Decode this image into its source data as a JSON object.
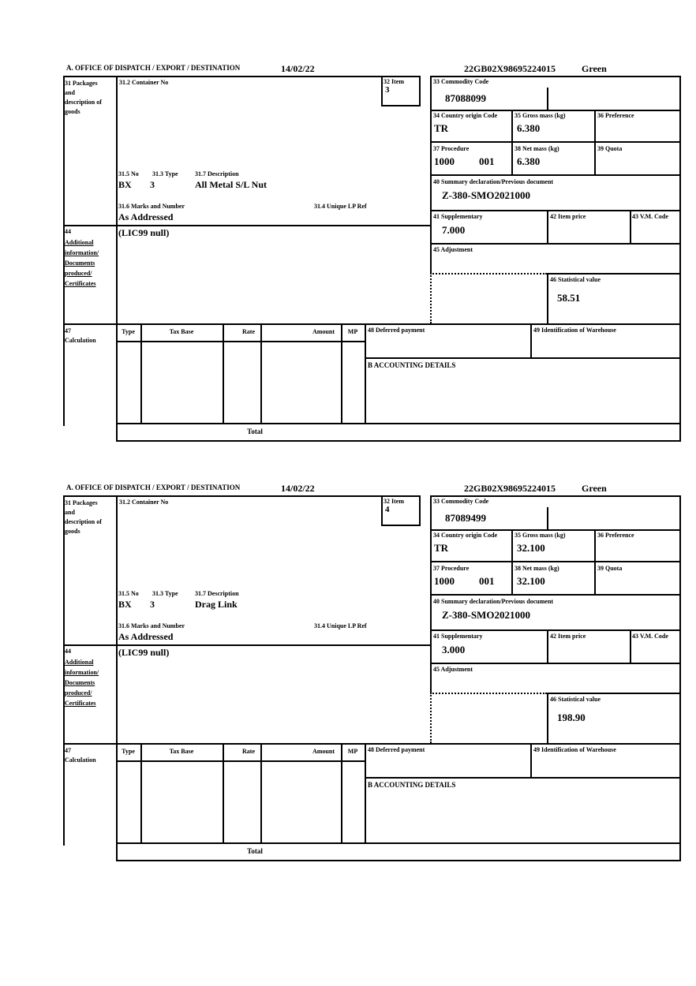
{
  "labels": {
    "office": "A.  OFFICE OF DISPATCH / EXPORT / DESTINATION",
    "box31": "31 Packages and description of goods",
    "box31_2": "31.2 Container No",
    "box32": "32 Item",
    "box33": "33 Commodity Code",
    "box34": "34 Country origin Code",
    "box35": "35 Gross mass (kg)",
    "box36": "36 Preference",
    "box37": "37 Procedure",
    "box38": "38 Net mass (kg)",
    "box39": "39 Quota",
    "box40": "40 Summary declaration/Previous document",
    "box41": "41 Supplementary",
    "box42": "42 Item price",
    "box43": "43 V.M. Code",
    "box45": "45 Adjustment",
    "box46": "46 Statistical value",
    "box31_5": "31.5 No",
    "box31_3": "31.3 Type",
    "box31_7": "31.7 Description",
    "box31_6": "31.6 Marks and Number",
    "box31_4": "31.4 Unique LP Ref",
    "box44_no": "44",
    "box44": "Additional information/ Documents produced/ Certificates",
    "box47": "47 Calculation",
    "col_type": "Type",
    "col_tax_base": "Tax Base",
    "col_rate": "Rate",
    "col_amount": "Amount",
    "col_mp": "MP",
    "box48": "48 Deferred payment",
    "box49": "49 Identification of Warehouse",
    "accounting": "B ACCOUNTING DETAILS",
    "total": "Total"
  },
  "forms": [
    {
      "date": "14/02/22",
      "mrn": "22GB02X98695224015",
      "status": "Green",
      "item_no": "3",
      "commodity_code": "87088099",
      "country_origin": "TR",
      "gross_mass": "6.380",
      "procedure_1": "1000",
      "procedure_2": "001",
      "net_mass": "6.380",
      "previous_document": "Z-380-SMO2021000",
      "supplementary": "7.000",
      "statistical_value": "58.51",
      "package_code": "BX",
      "package_qty": "3",
      "goods_description": "All Metal S/L Nut",
      "marks": "As Addressed",
      "additional_info": "(LIC99 null)"
    },
    {
      "date": "14/02/22",
      "mrn": "22GB02X98695224015",
      "status": "Green",
      "item_no": "4",
      "commodity_code": "87089499",
      "country_origin": "TR",
      "gross_mass": "32.100",
      "procedure_1": "1000",
      "procedure_2": "001",
      "net_mass": "32.100",
      "previous_document": "Z-380-SMO2021000",
      "supplementary": "3.000",
      "statistical_value": "198.90",
      "package_code": "BX",
      "package_qty": "3",
      "goods_description": "Drag Link",
      "marks": "As Addressed",
      "additional_info": "(LIC99 null)"
    }
  ]
}
